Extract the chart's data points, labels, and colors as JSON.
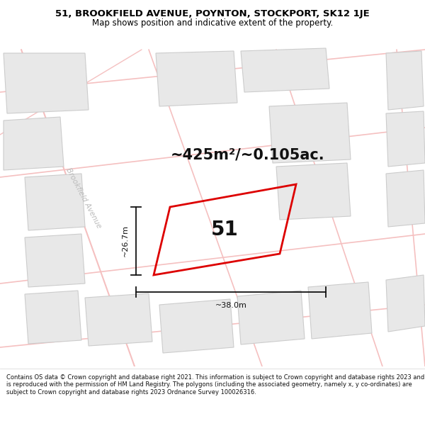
{
  "title_line1": "51, BROOKFIELD AVENUE, POYNTON, STOCKPORT, SK12 1JE",
  "title_line2": "Map shows position and indicative extent of the property.",
  "area_text": "~425m²/~0.105ac.",
  "property_label": "51",
  "dim_vertical": "~26.7m",
  "dim_horizontal": "~38.0m",
  "street_name": "Brookfield Avenue",
  "disclaimer": "Contains OS data © Crown copyright and database right 2021. This information is subject to Crown copyright and database rights 2023 and is reproduced with the permission of HM Land Registry. The polygons (including the associated geometry, namely x, y co-ordinates) are subject to Crown copyright and database rights 2023 Ordnance Survey 100026316.",
  "map_bg_color": "#ffffff",
  "road_color": "#f5c0c0",
  "building_fill_color": "#e8e8e8",
  "building_edge_color": "#cccccc",
  "property_edge_color": "#dd0000",
  "street_text_color": "#bbbbbb",
  "title_bg_color": "#ffffff",
  "footer_bg_color": "#ffffff",
  "dim_color": "#111111",
  "label_color": "#111111"
}
